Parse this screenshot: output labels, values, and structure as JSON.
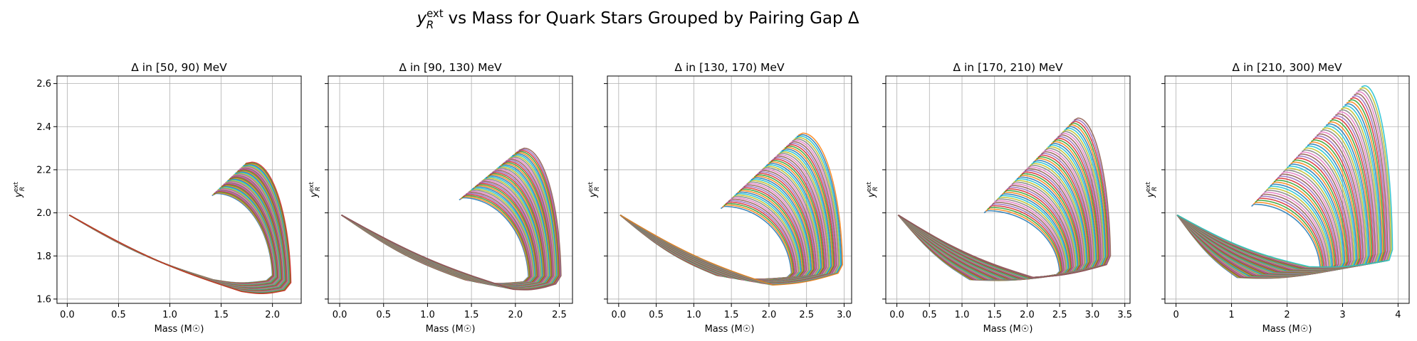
{
  "figure": {
    "suptitle_main": "y",
    "suptitle_sub": "R",
    "suptitle_sup": "ext",
    "suptitle_rest": " vs Mass for Quark Stars Grouped by Pairing Gap Δ"
  },
  "chart_data": [
    {
      "type": "line",
      "title": "Δ in [50, 90) MeV",
      "xlabel": "Mass (M☉)",
      "ylabel_main": "y",
      "ylabel_sub": "R",
      "ylabel_sup": "ext",
      "xlim": [
        -0.1,
        2.28
      ],
      "ylim": [
        1.58,
        2.635
      ],
      "xticks": [
        0.0,
        0.5,
        1.0,
        1.5,
        2.0
      ],
      "xtick_labels": [
        "0.0",
        "0.5",
        "1.0",
        "1.5",
        "2.0"
      ],
      "yticks": [
        1.6,
        1.8,
        2.0,
        2.2,
        2.4,
        2.6
      ],
      "ytick_labels": [
        "1.6",
        "1.8",
        "2.0",
        "2.2",
        "2.4",
        "2.6"
      ],
      "show_ytick_labels": true,
      "grid": true,
      "curve_family": {
        "count": 44,
        "start": [
          0.02,
          1.99
        ],
        "min_mass": [
          1.42,
          1.7
        ],
        "min_y": [
          1.69,
          1.635
        ],
        "max_mass": [
          2.0,
          2.18
        ],
        "bottom_y": [
          1.685,
          1.64
        ],
        "turn_mass": [
          1.45,
          1.8
        ],
        "turn_y": [
          2.08,
          2.23
        ],
        "top_y": [
          2.09,
          2.235
        ]
      }
    },
    {
      "type": "line",
      "title": "Δ in [90, 130) MeV",
      "xlabel": "Mass (M☉)",
      "ylabel_main": "y",
      "ylabel_sub": "R",
      "ylabel_sup": "ext",
      "xlim": [
        -0.13,
        2.65
      ],
      "ylim": [
        1.58,
        2.635
      ],
      "xticks": [
        0.0,
        0.5,
        1.0,
        1.5,
        2.0,
        2.5
      ],
      "xtick_labels": [
        "0.0",
        "0.5",
        "1.0",
        "1.5",
        "2.0",
        "2.5"
      ],
      "yticks": [
        1.6,
        1.8,
        2.0,
        2.2,
        2.4,
        2.6
      ],
      "ytick_labels": [
        "1.6",
        "1.8",
        "2.0",
        "2.2",
        "2.4",
        "2.6"
      ],
      "show_ytick_labels": false,
      "grid": true,
      "curve_family": {
        "count": 46,
        "start": [
          0.02,
          1.99
        ],
        "min_mass": [
          1.42,
          1.98
        ],
        "min_y": [
          1.69,
          1.645
        ],
        "max_mass": [
          2.15,
          2.52
        ],
        "bottom_y": [
          1.68,
          1.67
        ],
        "turn_mass": [
          1.4,
          2.1
        ],
        "turn_y": [
          2.06,
          2.29
        ],
        "top_y": [
          2.07,
          2.3
        ]
      }
    },
    {
      "type": "line",
      "title": "Δ in [130, 170) MeV",
      "xlabel": "Mass (M☉)",
      "ylabel_main": "y",
      "ylabel_sub": "R",
      "ylabel_sup": "ext",
      "xlim": [
        -0.15,
        3.1
      ],
      "ylim": [
        1.58,
        2.635
      ],
      "xticks": [
        0.0,
        0.5,
        1.0,
        1.5,
        2.0,
        2.5,
        3.0
      ],
      "xtick_labels": [
        "0.0",
        "0.5",
        "1.0",
        "1.5",
        "2.0",
        "2.5",
        "3.0"
      ],
      "yticks": [
        1.6,
        1.8,
        2.0,
        2.2,
        2.4,
        2.6
      ],
      "ytick_labels": [
        "1.6",
        "1.8",
        "2.0",
        "2.2",
        "2.4",
        "2.6"
      ],
      "show_ytick_labels": false,
      "grid": true,
      "curve_family": {
        "count": 52,
        "start": [
          0.02,
          1.99
        ],
        "min_mass": [
          1.3,
          2.05
        ],
        "min_y": [
          1.71,
          1.665
        ],
        "max_mass": [
          2.3,
          2.98
        ],
        "bottom_y": [
          1.7,
          1.72
        ],
        "turn_mass": [
          1.4,
          2.45
        ],
        "turn_y": [
          2.02,
          2.36
        ],
        "top_y": [
          2.03,
          2.37
        ]
      }
    },
    {
      "type": "line",
      "title": "Δ in [170, 210) MeV",
      "xlabel": "Mass (M☉)",
      "ylabel_main": "y",
      "ylabel_sub": "R",
      "ylabel_sup": "ext",
      "xlim": [
        -0.17,
        3.58
      ],
      "ylim": [
        1.58,
        2.635
      ],
      "xticks": [
        0.0,
        0.5,
        1.0,
        1.5,
        2.0,
        2.5,
        3.0,
        3.5
      ],
      "xtick_labels": [
        "0.0",
        "0.5",
        "1.0",
        "1.5",
        "2.0",
        "2.5",
        "3.0",
        "3.5"
      ],
      "yticks": [
        1.6,
        1.8,
        2.0,
        2.2,
        2.4,
        2.6
      ],
      "ytick_labels": [
        "1.6",
        "1.8",
        "2.0",
        "2.2",
        "2.4",
        "2.6"
      ],
      "show_ytick_labels": false,
      "grid": true,
      "curve_family": {
        "count": 56,
        "start": [
          0.02,
          1.99
        ],
        "min_mass": [
          1.12,
          2.1
        ],
        "min_y": [
          1.69,
          1.7
        ],
        "max_mass": [
          2.5,
          3.28
        ],
        "bottom_y": [
          1.71,
          1.76
        ],
        "turn_mass": [
          1.38,
          2.78
        ],
        "turn_y": [
          2.0,
          2.43
        ],
        "top_y": [
          2.01,
          2.44
        ]
      }
    },
    {
      "type": "line",
      "title": "Δ in [210, 300) MeV",
      "xlabel": "Mass (M☉)",
      "ylabel_main": "y",
      "ylabel_sub": "R",
      "ylabel_sup": "ext",
      "xlim": [
        -0.2,
        4.2
      ],
      "ylim": [
        1.58,
        2.635
      ],
      "xticks": [
        0,
        1,
        2,
        3,
        4
      ],
      "xtick_labels": [
        "0",
        "1",
        "2",
        "3",
        "4"
      ],
      "yticks": [
        1.6,
        1.8,
        2.0,
        2.2,
        2.4,
        2.6
      ],
      "ytick_labels": [
        "1.6",
        "1.8",
        "2.0",
        "2.2",
        "2.4",
        "2.6"
      ],
      "show_ytick_labels": false,
      "grid": true,
      "curve_family": {
        "count": 60,
        "start": [
          0.02,
          1.99
        ],
        "min_mass": [
          1.1,
          2.4
        ],
        "min_y": [
          1.7,
          1.75
        ],
        "max_mass": [
          2.6,
          3.9
        ],
        "bottom_y": [
          1.72,
          1.78
        ],
        "turn_mass": [
          1.4,
          3.4
        ],
        "turn_y": [
          2.03,
          2.585
        ],
        "top_y": [
          2.04,
          2.59
        ]
      }
    }
  ],
  "palette": [
    "#1f77b4",
    "#ff7f0e",
    "#2ca02c",
    "#d62728",
    "#9467bd",
    "#8c564b",
    "#e377c2",
    "#7f7f7f",
    "#bcbd22",
    "#17becf"
  ]
}
